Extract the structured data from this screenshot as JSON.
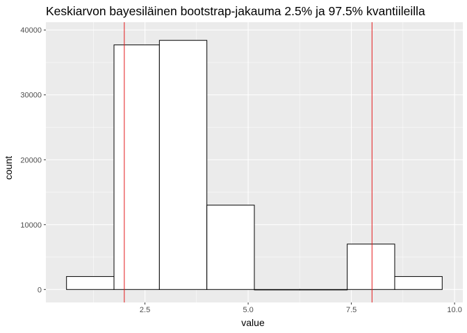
{
  "chart_data": {
    "type": "bar",
    "title": "Keskiarvon bayesiläinen bootstrap-jakauma 2.5% ja 97.5% kvantiileilla",
    "xlabel": "value",
    "ylabel": "count",
    "xlim": [
      0.1,
      10.2
    ],
    "ylim": [
      -2000,
      41200
    ],
    "x_ticks": [
      2.5,
      5.0,
      7.5,
      10.0
    ],
    "x_tick_labels": [
      "2.5",
      "5.0",
      "7.5",
      "10.0"
    ],
    "y_ticks": [
      0,
      10000,
      20000,
      30000,
      40000
    ],
    "y_tick_labels": [
      "0",
      "10000",
      "20000",
      "30000",
      "40000"
    ],
    "bins": [
      {
        "x0": 0.6,
        "x1": 1.75,
        "count": 2000
      },
      {
        "x0": 1.75,
        "x1": 2.85,
        "count": 37700
      },
      {
        "x0": 2.85,
        "x1": 4.0,
        "count": 38400
      },
      {
        "x0": 4.0,
        "x1": 5.15,
        "count": 13000
      },
      {
        "x0": 5.15,
        "x1": 6.25,
        "count": 0
      },
      {
        "x0": 6.25,
        "x1": 7.4,
        "count": 0
      },
      {
        "x0": 7.4,
        "x1": 8.55,
        "count": 7000
      },
      {
        "x0": 8.55,
        "x1": 9.7,
        "count": 2000
      }
    ],
    "quantile_lines": [
      {
        "value": 2.0,
        "color": "#e41a1c"
      },
      {
        "value": 8.0,
        "color": "#e41a1c"
      }
    ],
    "panel_background": "#ebebeb",
    "grid_color": "#ffffff",
    "bar_fill": "#ffffff",
    "bar_stroke": "#000000",
    "grid": true
  }
}
